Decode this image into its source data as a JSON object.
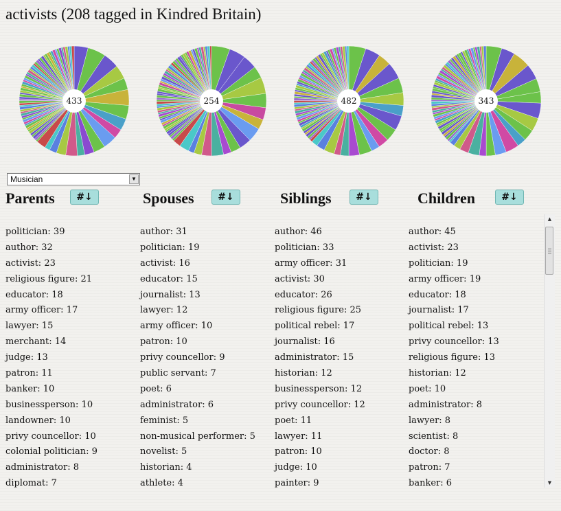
{
  "title": "activists (208 tagged in Kindred Britain)",
  "pies": [
    {
      "name": "parents",
      "center_label": "433",
      "slice_colors": [
        "#6a57cc",
        "#6cc24a",
        "#6a57cc",
        "#a7c943",
        "#6cc24a",
        "#c8b33a",
        "#6cc24a",
        "#4aa0c8",
        "#d04aa4",
        "#6a9cf0",
        "#6cc24a",
        "#8a4ad0",
        "#4ab0a0",
        "#d05a8a",
        "#a7c943",
        "#5a80e0",
        "#4ac8c8",
        "#c84a4a",
        "#6cc24a",
        "#9a6ad0"
      ]
    },
    {
      "name": "spouses",
      "center_label": "254",
      "slice_colors": [
        "#6cc24a",
        "#6a57cc",
        "#6a57cc",
        "#6cc24a",
        "#a7c943",
        "#6cc24a",
        "#c84aa0",
        "#c8b33a",
        "#6a9cf0",
        "#6a57cc",
        "#6cc24a",
        "#a84ad0",
        "#4ab0a0",
        "#d05a8a",
        "#a7c943",
        "#5a80e0",
        "#4ac8c8",
        "#c84a4a",
        "#6cc24a",
        "#9a6ad0"
      ]
    },
    {
      "name": "siblings",
      "center_label": "482",
      "slice_colors": [
        "#6cc24a",
        "#6a57cc",
        "#c8b33a",
        "#6a57cc",
        "#6cc24a",
        "#a7c943",
        "#4aa0c8",
        "#6a57cc",
        "#6cc24a",
        "#d04aa4",
        "#6a9cf0",
        "#6cc24a",
        "#a84ad0",
        "#4ab0a0",
        "#d05a8a",
        "#a7c943",
        "#5a80e0",
        "#4ac8c8",
        "#c84a4a",
        "#9a6ad0"
      ]
    },
    {
      "name": "children",
      "center_label": "343",
      "slice_colors": [
        "#6cc24a",
        "#6a57cc",
        "#c8b33a",
        "#6a57cc",
        "#6cc24a",
        "#6cc24a",
        "#6a57cc",
        "#a7c943",
        "#6cc24a",
        "#4aa0c8",
        "#d04aa4",
        "#6a9cf0",
        "#6cc24a",
        "#a84ad0",
        "#4ab0a0",
        "#d05a8a",
        "#a7c943",
        "#5a80e0",
        "#4ac8c8",
        "#9a6ad0"
      ]
    }
  ],
  "filter": {
    "selected": "Musician",
    "arrow_icon": "dropdown-arrow-icon"
  },
  "columns": [
    {
      "heading": "Parents",
      "sort_label": "#↓",
      "items": [
        "politician: 39",
        "author: 32",
        "activist: 23",
        "religious figure: 21",
        "educator: 18",
        "army officer: 17",
        "lawyer: 15",
        "merchant: 14",
        "judge: 13",
        "patron: 11",
        "banker: 10",
        "businessperson: 10",
        "landowner: 10",
        "privy councellor: 10",
        "colonial politician: 9",
        "administrator: 8",
        "diplomat: 7"
      ]
    },
    {
      "heading": "Spouses",
      "sort_label": "#↓",
      "items": [
        "author: 31",
        "politician: 19",
        "activist: 16",
        "educator: 15",
        "journalist: 13",
        "lawyer: 12",
        "army officer: 10",
        "patron: 10",
        "privy councellor: 9",
        "public servant: 7",
        "poet: 6",
        "administrator: 6",
        "feminist: 5",
        "non-musical performer: 5",
        "novelist: 5",
        "historian: 4",
        "athlete: 4"
      ]
    },
    {
      "heading": "Siblings",
      "sort_label": "#↓",
      "items": [
        "author: 46",
        "politician: 33",
        "army officer: 31",
        "activist: 30",
        "educator: 26",
        "religious figure: 25",
        "political rebel: 17",
        "journalist: 16",
        "administrator: 15",
        "historian: 12",
        "businessperson: 12",
        "privy councellor: 12",
        "poet: 11",
        "lawyer: 11",
        "patron: 10",
        "judge: 10",
        "painter: 9"
      ]
    },
    {
      "heading": "Children",
      "sort_label": "#↓",
      "items": [
        "author: 45",
        "activist: 23",
        "politician: 19",
        "army officer: 19",
        "educator: 18",
        "journalist: 17",
        "political rebel: 13",
        "privy councellor: 13",
        "religious figure: 13",
        "historian: 12",
        "poet: 10",
        "administrator: 8",
        "lawyer: 8",
        "scientist: 8",
        "doctor: 8",
        "patron: 7",
        "banker: 6"
      ]
    }
  ],
  "scrollbar": {
    "up_icon": "scroll-up-arrow-icon",
    "down_icon": "scroll-down-arrow-icon"
  }
}
